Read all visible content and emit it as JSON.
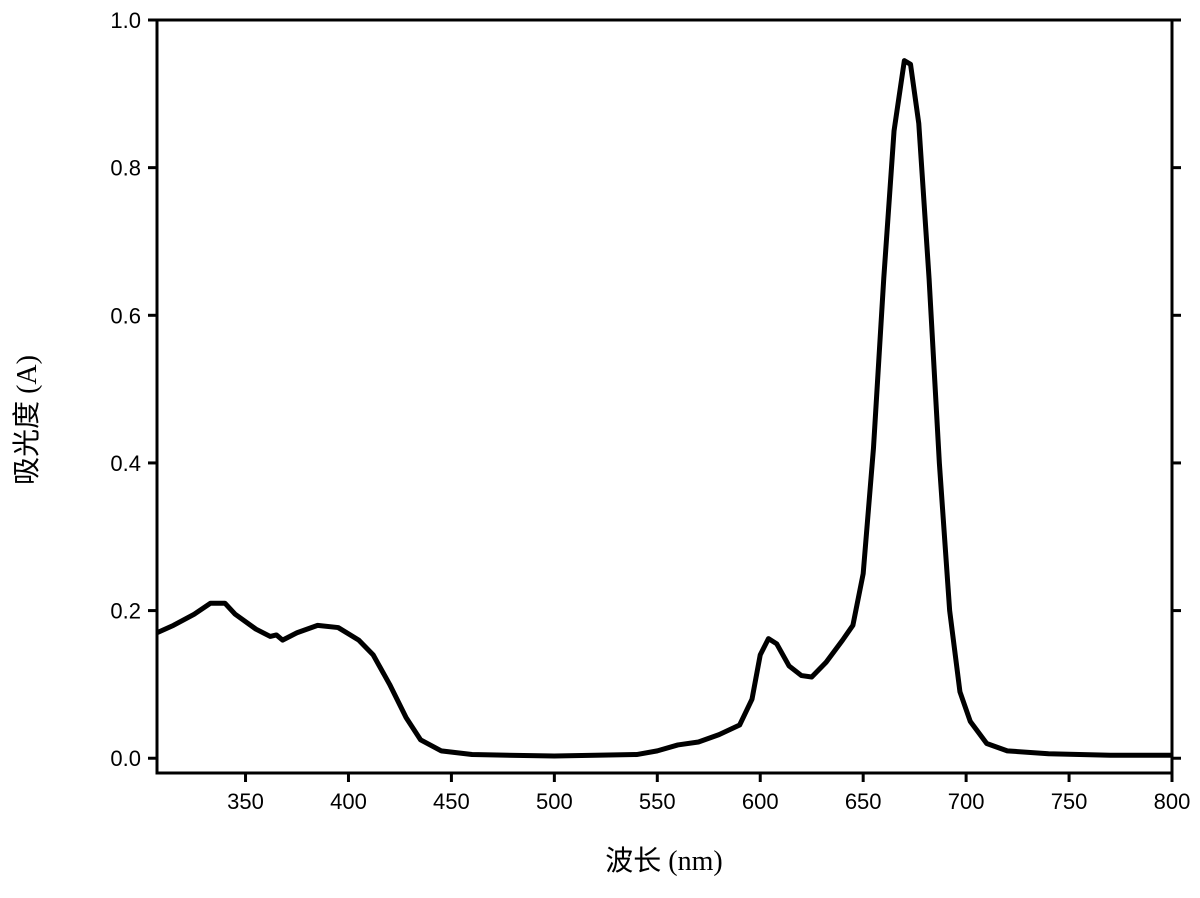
{
  "chart_data": {
    "type": "line",
    "x_label": "波长 (nm)",
    "y_label": "吸光度 (A)",
    "x": [
      307,
      315,
      325,
      333,
      340,
      345,
      355,
      362,
      365,
      368,
      375,
      385,
      395,
      405,
      412,
      420,
      428,
      435,
      445,
      460,
      500,
      540,
      550,
      560,
      570,
      580,
      590,
      596,
      600,
      604,
      608,
      614,
      620,
      625,
      632,
      640,
      645,
      650,
      655,
      660,
      665,
      670,
      673,
      677,
      682,
      687,
      692,
      697,
      702,
      710,
      720,
      740,
      770,
      800
    ],
    "series": [
      {
        "color": "#000000",
        "values": [
          0.17,
          0.18,
          0.195,
          0.21,
          0.21,
          0.195,
          0.175,
          0.165,
          0.167,
          0.16,
          0.17,
          0.18,
          0.177,
          0.16,
          0.14,
          0.1,
          0.055,
          0.025,
          0.01,
          0.005,
          0.003,
          0.005,
          0.01,
          0.018,
          0.022,
          0.032,
          0.045,
          0.08,
          0.14,
          0.162,
          0.155,
          0.125,
          0.112,
          0.11,
          0.13,
          0.16,
          0.18,
          0.25,
          0.42,
          0.65,
          0.85,
          0.945,
          0.94,
          0.86,
          0.65,
          0.4,
          0.2,
          0.09,
          0.05,
          0.02,
          0.01,
          0.006,
          0.004,
          0.004
        ]
      }
    ],
    "xlim": [
      307,
      800
    ],
    "ylim": [
      -0.02,
      1.0
    ],
    "xticks": [
      350,
      400,
      450,
      500,
      550,
      600,
      650,
      700,
      750,
      800
    ],
    "yticks": [
      {
        "value": 0,
        "label": "0.0"
      },
      0.2,
      0.4,
      0.6,
      0.8,
      {
        "value": 1,
        "label": "1.0"
      }
    ]
  }
}
